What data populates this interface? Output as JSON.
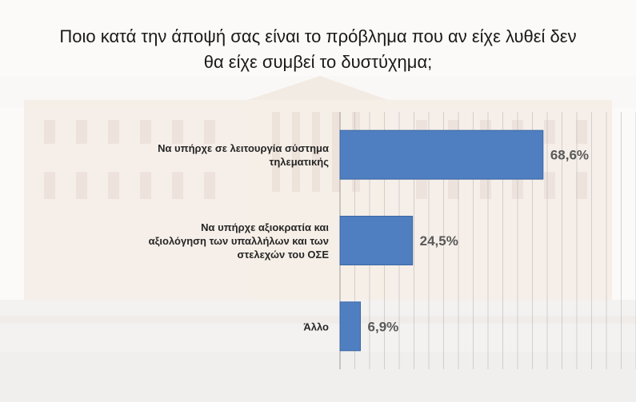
{
  "title_lines": [
    "Ποιο κατά την άποψή σας είναι το πρόβλημα που αν είχε λυθεί δεν",
    "θα είχε συμβεί το δυστύχημα;"
  ],
  "colors": {
    "bar": "#4f7fc0",
    "bar_edge": "#3a66a5",
    "grid": "#bdbdbd"
  },
  "chart_data": {
    "type": "bar",
    "orientation": "horizontal",
    "title": "Ποιο κατά την άποψή σας είναι το πρόβλημα που αν είχε λυθεί δεν θα είχε συμβεί το δυστύχημα;",
    "categories": [
      [
        "Να υπήρχε σε λειτουργία σύστημα",
        "τηλεματικής"
      ],
      [
        "Να υπήρχε αξιοκρατία και",
        "αξιολόγηση των υπαλλήλων και των",
        "στελεχών του ΟΣΕ"
      ],
      [
        "Άλλο"
      ]
    ],
    "values": [
      68.6,
      24.5,
      6.9
    ],
    "value_labels": [
      "68,6%",
      "24,5%",
      "6,9%"
    ],
    "xlim": [
      0,
      100
    ],
    "grid": true,
    "legend": false
  }
}
